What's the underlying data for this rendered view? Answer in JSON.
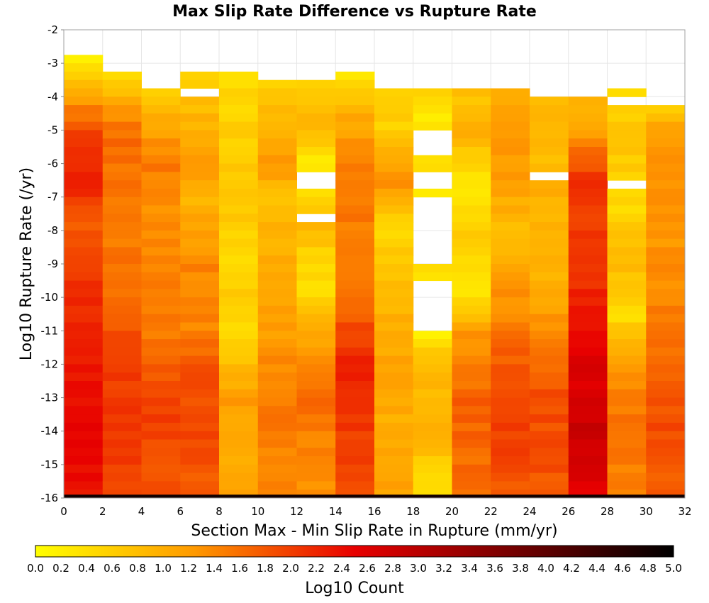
{
  "chart_data": {
    "type": "heatmap",
    "title": "Max Slip Rate Difference vs Rupture Rate",
    "xlabel": "Section Max - Min Slip Rate in Rupture (mm/yr)",
    "ylabel": "Log10 Rupture Rate (/yr)",
    "xlim": [
      0,
      32
    ],
    "ylim": [
      -16,
      -2
    ],
    "x_ticks": [
      "0",
      "2",
      "4",
      "6",
      "8",
      "10",
      "12",
      "14",
      "16",
      "18",
      "20",
      "22",
      "24",
      "26",
      "28",
      "30",
      "32"
    ],
    "y_ticks": [
      "-2",
      "-3",
      "-4",
      "-5",
      "-6",
      "-7",
      "-8",
      "-9",
      "-10",
      "-11",
      "-12",
      "-13",
      "-14",
      "-15",
      "-16"
    ],
    "grid": true,
    "x_bin_width": 2,
    "y_bin_height": 0.25,
    "colorbar": {
      "label": "Log10 Count",
      "min": 0.0,
      "max": 5.0,
      "ticks": [
        "0.0",
        "0.2",
        "0.4",
        "0.6",
        "0.8",
        "1.0",
        "1.2",
        "1.4",
        "1.6",
        "1.8",
        "2.0",
        "2.2",
        "2.4",
        "2.6",
        "2.8",
        "3.0",
        "3.2",
        "3.4",
        "3.6",
        "3.8",
        "4.0",
        "4.2",
        "4.4",
        "4.6",
        "4.8",
        "5.0"
      ],
      "colors": [
        "#ffff00",
        "#ff9900",
        "#e80000",
        "#000000"
      ]
    },
    "columns": [
      {
        "x": 1,
        "y_top": -2.75,
        "profile": [
          [
            -2.75,
            0.2
          ],
          [
            -3.5,
            0.8
          ],
          [
            -5.0,
            1.9
          ],
          [
            -6.5,
            2.3
          ],
          [
            -7.5,
            1.7
          ],
          [
            -9.0,
            2.0
          ],
          [
            -12.0,
            2.3
          ],
          [
            -14.0,
            2.5
          ],
          [
            -15.75,
            2.4
          ]
        ]
      },
      {
        "x": 3,
        "y_top": -3.25,
        "profile": [
          [
            -3.25,
            0.2
          ],
          [
            -4.0,
            1.0
          ],
          [
            -5.0,
            1.6
          ],
          [
            -6.5,
            1.6
          ],
          [
            -8.0,
            1.5
          ],
          [
            -10.0,
            1.6
          ],
          [
            -12.0,
            2.0
          ],
          [
            -14.0,
            2.1
          ],
          [
            -15.75,
            2.0
          ]
        ]
      },
      {
        "x": 5,
        "y_top": -3.5,
        "profile": [
          [
            -3.5,
            0.3
          ],
          [
            -4.5,
            1.0
          ],
          [
            -6.0,
            1.5
          ],
          [
            -7.0,
            1.3
          ],
          [
            -9.0,
            1.4
          ],
          [
            -11.0,
            1.5
          ],
          [
            -13.0,
            2.0
          ],
          [
            -15.75,
            1.8
          ]
        ]
      },
      {
        "x": 7,
        "y_top": -3.25,
        "profile": [
          [
            -3.25,
            0.5
          ],
          [
            -4.5,
            0.9
          ],
          [
            -6.0,
            1.2
          ],
          [
            -7.0,
            0.9
          ],
          [
            -9.0,
            1.4
          ],
          [
            -11.0,
            1.4
          ],
          [
            -12.0,
            1.8
          ],
          [
            -14.0,
            1.9
          ],
          [
            -15.75,
            1.8
          ]
        ]
      },
      {
        "x": 9,
        "y_top": -3.25,
        "profile": [
          [
            -3.25,
            0.4
          ],
          [
            -5.0,
            0.6
          ],
          [
            -7.0,
            0.7
          ],
          [
            -8.5,
            0.5
          ],
          [
            -10.0,
            0.6
          ],
          [
            -11.0,
            0.4
          ],
          [
            -13.0,
            1.2
          ],
          [
            -15.0,
            1.0
          ],
          [
            -15.75,
            1.1
          ]
        ]
      },
      {
        "x": 11,
        "y_top": -3.5,
        "profile": [
          [
            -3.5,
            0.5
          ],
          [
            -5.0,
            1.0
          ],
          [
            -6.0,
            1.3
          ],
          [
            -7.0,
            0.7
          ],
          [
            -9.0,
            1.1
          ],
          [
            -11.0,
            1.2
          ],
          [
            -13.0,
            1.5
          ],
          [
            -15.75,
            1.4
          ]
        ]
      },
      {
        "x": 13,
        "y_top": -3.5,
        "profile": [
          [
            -3.5,
            0.5
          ],
          [
            -5.0,
            0.9
          ],
          [
            -6.0,
            0.2
          ],
          [
            -7.0,
            0.5
          ],
          [
            -8.0,
            0.9
          ],
          [
            -9.0,
            0.4
          ],
          [
            -10.0,
            0.5
          ],
          [
            -11.0,
            1.1
          ],
          [
            -13.0,
            1.6
          ],
          [
            -15.75,
            1.3
          ]
        ]
      },
      {
        "x": 15,
        "y_top": -3.25,
        "profile": [
          [
            -3.25,
            0.3
          ],
          [
            -4.5,
            1.0
          ],
          [
            -6.5,
            1.6
          ],
          [
            -8.0,
            1.5
          ],
          [
            -10.0,
            1.6
          ],
          [
            -12.0,
            2.2
          ],
          [
            -14.0,
            2.0
          ],
          [
            -15.75,
            1.9
          ]
        ]
      },
      {
        "x": 17,
        "y_top": -3.75,
        "profile": [
          [
            -3.75,
            0.6
          ],
          [
            -5.0,
            0.6
          ],
          [
            -6.5,
            1.3
          ],
          [
            -8.0,
            0.5
          ],
          [
            -10.0,
            0.9
          ],
          [
            -12.0,
            1.1
          ],
          [
            -14.0,
            1.0
          ],
          [
            -15.75,
            1.1
          ]
        ]
      },
      {
        "x": 19,
        "y_top": -3.75,
        "profile": [
          [
            -3.75,
            0.6
          ],
          [
            -4.5,
            0.3
          ],
          [
            -6.0,
            0.5
          ],
          [
            -7.0,
            0.3
          ],
          [
            -9.0,
            0.4
          ],
          [
            -11.0,
            0.2
          ],
          [
            -12.0,
            0.8
          ],
          [
            -14.0,
            1.0
          ],
          [
            -15.0,
            0.6
          ],
          [
            -15.75,
            0.5
          ]
        ]
      },
      {
        "x": 21,
        "y_top": -3.75,
        "profile": [
          [
            -3.75,
            0.7
          ],
          [
            -5.0,
            1.0
          ],
          [
            -6.5,
            0.3
          ],
          [
            -8.0,
            0.6
          ],
          [
            -10.0,
            0.4
          ],
          [
            -11.0,
            1.2
          ],
          [
            -13.0,
            1.7
          ],
          [
            -15.75,
            1.6
          ]
        ]
      },
      {
        "x": 23,
        "y_top": -3.75,
        "profile": [
          [
            -3.75,
            0.9
          ],
          [
            -5.0,
            1.2
          ],
          [
            -6.5,
            1.2
          ],
          [
            -8.0,
            0.8
          ],
          [
            -10.0,
            1.3
          ],
          [
            -12.0,
            1.8
          ],
          [
            -14.0,
            2.0
          ],
          [
            -15.75,
            1.8
          ]
        ]
      },
      {
        "x": 25,
        "y_top": -4.0,
        "profile": [
          [
            -4.0,
            0.9
          ],
          [
            -5.5,
            0.8
          ],
          [
            -7.0,
            1.0
          ],
          [
            -9.0,
            0.9
          ],
          [
            -11.0,
            1.3
          ],
          [
            -13.0,
            1.9
          ],
          [
            -15.75,
            1.8
          ]
        ]
      },
      {
        "x": 27,
        "y_top": -4.0,
        "profile": [
          [
            -4.0,
            0.8
          ],
          [
            -5.0,
            1.2
          ],
          [
            -6.5,
            2.1
          ],
          [
            -8.0,
            2.0
          ],
          [
            -10.0,
            2.2
          ],
          [
            -12.0,
            2.6
          ],
          [
            -14.0,
            2.8
          ],
          [
            -15.75,
            2.5
          ]
        ]
      },
      {
        "x": 29,
        "y_top": -3.75,
        "profile": [
          [
            -3.75,
            0.3
          ],
          [
            -5.0,
            0.8
          ],
          [
            -6.0,
            0.6
          ],
          [
            -7.5,
            0.5
          ],
          [
            -9.0,
            0.9
          ],
          [
            -10.5,
            0.4
          ],
          [
            -12.0,
            1.3
          ],
          [
            -14.0,
            1.6
          ],
          [
            -15.75,
            1.4
          ]
        ]
      },
      {
        "x": 31,
        "y_top": -4.25,
        "profile": [
          [
            -4.25,
            0.5
          ],
          [
            -5.0,
            1.2
          ],
          [
            -6.5,
            1.3
          ],
          [
            -8.0,
            1.2
          ],
          [
            -10.0,
            1.4
          ],
          [
            -12.0,
            1.7
          ],
          [
            -14.0,
            1.9
          ],
          [
            -15.75,
            1.7
          ]
        ]
      }
    ],
    "empty_bins": [
      {
        "x": 5,
        "y_from": -3.75,
        "y_to": -3.5
      },
      {
        "x": 7,
        "y_from": -4.0,
        "y_to": -3.75
      },
      {
        "x": 13,
        "y_from": -6.75,
        "y_to": -6.25
      },
      {
        "x": 13,
        "y_from": -7.75,
        "y_to": -7.5
      },
      {
        "x": 19,
        "y_from": -5.75,
        "y_to": -5.0
      },
      {
        "x": 19,
        "y_from": -6.75,
        "y_to": -6.25
      },
      {
        "x": 19,
        "y_from": -9.0,
        "y_to": -7.0
      },
      {
        "x": 19,
        "y_from": -11.0,
        "y_to": -9.5
      },
      {
        "x": 25,
        "y_from": -6.5,
        "y_to": -6.25
      },
      {
        "x": 29,
        "y_from": -4.25,
        "y_to": -4.0
      },
      {
        "x": 29,
        "y_from": -6.75,
        "y_to": -6.5
      }
    ],
    "bottom_row": {
      "y_from": -16.0,
      "y_to": -15.9,
      "value": 4.8
    }
  }
}
